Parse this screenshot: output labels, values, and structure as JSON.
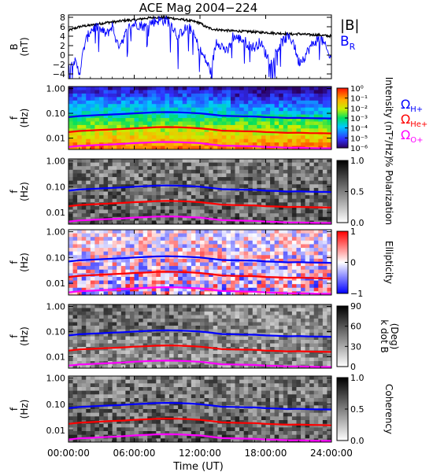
{
  "figure": {
    "title": "ACE Mag 2004−224",
    "xlabel": "Time (UT)",
    "xticks": [
      "00:00:00",
      "06:00:00",
      "12:00:00",
      "18:00:00",
      "24:00:00"
    ],
    "xlim_hours": [
      0,
      24
    ]
  },
  "legend": {
    "b_total": "|B|",
    "b_r_main": "B",
    "b_r_sub": "R",
    "omega": "Ω",
    "h_sub": "H+",
    "he_sub": "He+",
    "o_sub": "O+"
  },
  "colors": {
    "b_total": "#000000",
    "b_r": "#0000ff",
    "omega_h": "#0000ff",
    "omega_he": "#ff0000",
    "omega_o": "#ff00ff"
  },
  "chart_data": [
    {
      "type": "line",
      "panel": "b",
      "ylabel_line1": "B",
      "ylabel_line2": "(nT)",
      "yticks": [
        "−4",
        "−2",
        "0",
        "2",
        "4",
        "6",
        "8"
      ],
      "ylim": [
        -5,
        8.5
      ],
      "x_hours": [
        0,
        0.5,
        1,
        1.5,
        2,
        2.5,
        3,
        3.5,
        4,
        4.5,
        5,
        5.5,
        6,
        6.5,
        7,
        7.5,
        8,
        8.5,
        9,
        9.5,
        10,
        10.5,
        11,
        11.5,
        12,
        12.5,
        13,
        13.5,
        14,
        14.5,
        15,
        15.5,
        16,
        16.5,
        17,
        17.5,
        18,
        18.5,
        19,
        19.5,
        20,
        20.5,
        21,
        21.5,
        22,
        22.5,
        23,
        23.5,
        24
      ],
      "series": [
        {
          "name": "|B|",
          "values": [
            5.2,
            5.6,
            6.0,
            6.2,
            6.3,
            6.5,
            6.7,
            6.9,
            7.0,
            7.1,
            7.3,
            7.4,
            7.4,
            7.6,
            7.8,
            7.9,
            8.0,
            8.0,
            7.9,
            7.8,
            7.6,
            7.5,
            7.3,
            7.1,
            6.8,
            6.0,
            5.6,
            5.4,
            5.3,
            5.2,
            5.1,
            5.1,
            5.0,
            5.0,
            4.9,
            4.8,
            4.8,
            4.7,
            4.6,
            4.6,
            4.5,
            4.4,
            4.5,
            4.4,
            4.3,
            4.3,
            4.2,
            4.1,
            4.0
          ]
        },
        {
          "name": "BR",
          "values": [
            -2.5,
            -1.0,
            -3.8,
            2.5,
            5.2,
            6.0,
            5.2,
            4.4,
            6.2,
            2.0,
            3.5,
            5.8,
            6.6,
            6.4,
            6.0,
            6.8,
            7.3,
            7.4,
            7.3,
            6.2,
            3.8,
            5.4,
            5.8,
            4.0,
            1.0,
            -1.0,
            -3.5,
            3.0,
            2.0,
            0.5,
            4.0,
            3.5,
            3.2,
            2.0,
            1.6,
            2.8,
            0.3,
            -1.5,
            1.0,
            2.8,
            3.8,
            3.0,
            -1.5,
            -0.5,
            1.5,
            2.8,
            3.6,
            1.5,
            -1.2
          ]
        }
      ]
    },
    {
      "type": "heatmap",
      "panel": "intensity",
      "ylabel_line1": "f",
      "ylabel_line2": "(Hz)",
      "yticks": [
        "1.00",
        "0.10",
        "0.01"
      ],
      "ylim_hz": [
        0.0035,
        1.2
      ],
      "colorbar_label": "Intensity (nT²/Hz)",
      "colorbar_ticks": [
        "10⁰",
        "10⁻¹",
        "10⁻²",
        "10⁻³",
        "10⁻⁴",
        "10⁻⁵",
        "10⁻⁶"
      ],
      "colorbar_scale": "rainbow"
    },
    {
      "type": "heatmap",
      "panel": "polarization",
      "ylabel_line1": "f",
      "ylabel_line2": "(Hz)",
      "yticks": [
        "1.00",
        "0.10",
        "0.01"
      ],
      "ylim_hz": [
        0.0035,
        1.2
      ],
      "colorbar_label": "% Polarization",
      "colorbar_ticks": [
        "1.0",
        "0.5",
        "0.0"
      ],
      "colorbar_scale": "grayscale"
    },
    {
      "type": "heatmap",
      "panel": "ellipticity",
      "ylabel_line1": "f",
      "ylabel_line2": "(Hz)",
      "yticks": [
        "1.00",
        "0.10",
        "0.01"
      ],
      "ylim_hz": [
        0.0035,
        1.2
      ],
      "colorbar_label": "Ellipticity",
      "colorbar_ticks": [
        "1",
        "0",
        "−1"
      ],
      "colorbar_scale": "blue-white-red"
    },
    {
      "type": "heatmap",
      "panel": "kdotb",
      "ylabel_line1": "f",
      "ylabel_line2": "(Hz)",
      "yticks": [
        "1.00",
        "0.10",
        "0.01"
      ],
      "ylim_hz": [
        0.0035,
        1.2
      ],
      "colorbar_label": "k dot B",
      "colorbar_label2": "(Deg)",
      "colorbar_ticks": [
        "90",
        "60",
        "30",
        "0"
      ],
      "colorbar_scale": "grayscale"
    },
    {
      "type": "heatmap",
      "panel": "coherency",
      "ylabel_line1": "f",
      "ylabel_line2": "(Hz)",
      "yticks": [
        "1.00",
        "0.10",
        "0.01"
      ],
      "ylim_hz": [
        0.0035,
        1.2
      ],
      "colorbar_label": "Coherency",
      "colorbar_ticks": [
        "1.0",
        "0.5",
        "0.0"
      ],
      "colorbar_scale": "grayscale"
    }
  ],
  "gyrofrequency_lines": {
    "x_hours": [
      0,
      1,
      2,
      3,
      4,
      5,
      6,
      7,
      8,
      9,
      10,
      11,
      12,
      13,
      14,
      15,
      16,
      17,
      18,
      19,
      20,
      21,
      22,
      23,
      24
    ],
    "omega_h_hz": [
      0.07,
      0.078,
      0.082,
      0.086,
      0.09,
      0.094,
      0.1,
      0.105,
      0.11,
      0.112,
      0.11,
      0.106,
      0.1,
      0.09,
      0.08,
      0.078,
      0.076,
      0.075,
      0.07,
      0.068,
      0.065,
      0.066,
      0.064,
      0.063,
      0.062
    ],
    "omega_he_hz": [
      0.0175,
      0.0195,
      0.0205,
      0.0215,
      0.0225,
      0.0235,
      0.025,
      0.026,
      0.0275,
      0.028,
      0.0275,
      0.0265,
      0.025,
      0.0225,
      0.02,
      0.0195,
      0.019,
      0.0188,
      0.0175,
      0.017,
      0.0163,
      0.0165,
      0.016,
      0.0158,
      0.0155
    ],
    "omega_o_hz": [
      0.0044,
      0.0049,
      0.0051,
      0.0054,
      0.0056,
      0.0059,
      0.0063,
      0.0066,
      0.0069,
      0.007,
      0.0069,
      0.0066,
      0.0063,
      0.0056,
      0.005,
      0.0049,
      0.0048,
      0.0047,
      0.0044,
      0.0043,
      0.0041,
      0.0041,
      0.004,
      0.0039,
      0.0039
    ]
  }
}
